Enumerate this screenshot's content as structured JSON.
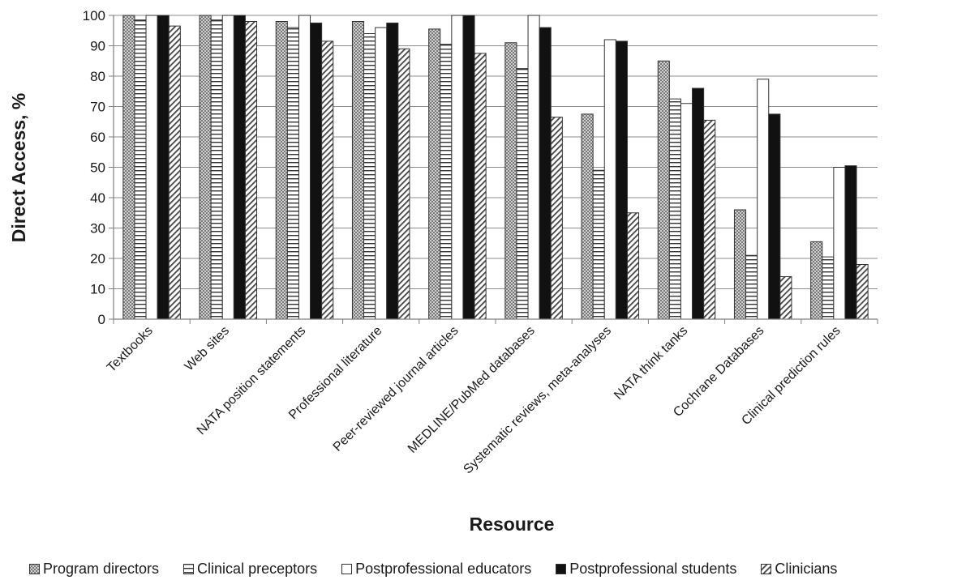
{
  "chart_data": {
    "type": "bar",
    "xlabel": "Resource",
    "ylabel": "Direct Access, %",
    "ylim": [
      0,
      100
    ],
    "yticks": [
      "0",
      "10",
      "20",
      "30",
      "40",
      "50",
      "60",
      "70",
      "80",
      "90",
      "100"
    ],
    "grid": true,
    "legend_position": "bottom",
    "categories": [
      "Textbooks",
      "Web sites",
      "NATA position statements",
      "Professional literature",
      "Peer-reviewed journal articles",
      "MEDLINE/PubMed databases",
      "Systematic reviews, meta-analyses",
      "NATA think tanks",
      "Cochrane Databases",
      "Clinical prediction rules"
    ],
    "series": [
      {
        "name": "Program directors",
        "pattern": "crosshatch",
        "values": [
          100,
          100,
          98,
          98,
          95.5,
          91,
          67.5,
          85,
          36,
          25.5
        ]
      },
      {
        "name": "Clinical preceptors",
        "pattern": "horizontal-lines",
        "values": [
          98.5,
          98.5,
          96,
          94,
          90.5,
          82.5,
          49,
          72.5,
          21,
          20.5
        ]
      },
      {
        "name": "Postprofessional educators",
        "pattern": "white",
        "values": [
          100,
          100,
          100,
          96,
          100,
          100,
          92,
          71,
          79,
          50
        ]
      },
      {
        "name": "Postprofessional students",
        "pattern": "black",
        "values": [
          100,
          100,
          97.5,
          97.5,
          100,
          96,
          91.5,
          76,
          67.5,
          50.5
        ]
      },
      {
        "name": "Clinicians",
        "pattern": "diagonal",
        "values": [
          96.5,
          98,
          91.5,
          89,
          87.5,
          66.5,
          35,
          65.5,
          14,
          18
        ]
      }
    ],
    "colors": {
      "axis": "#7f7f7f",
      "grid": "#8c8c8c",
      "bar_stroke": "#333333",
      "black_fill": "#111111"
    }
  }
}
